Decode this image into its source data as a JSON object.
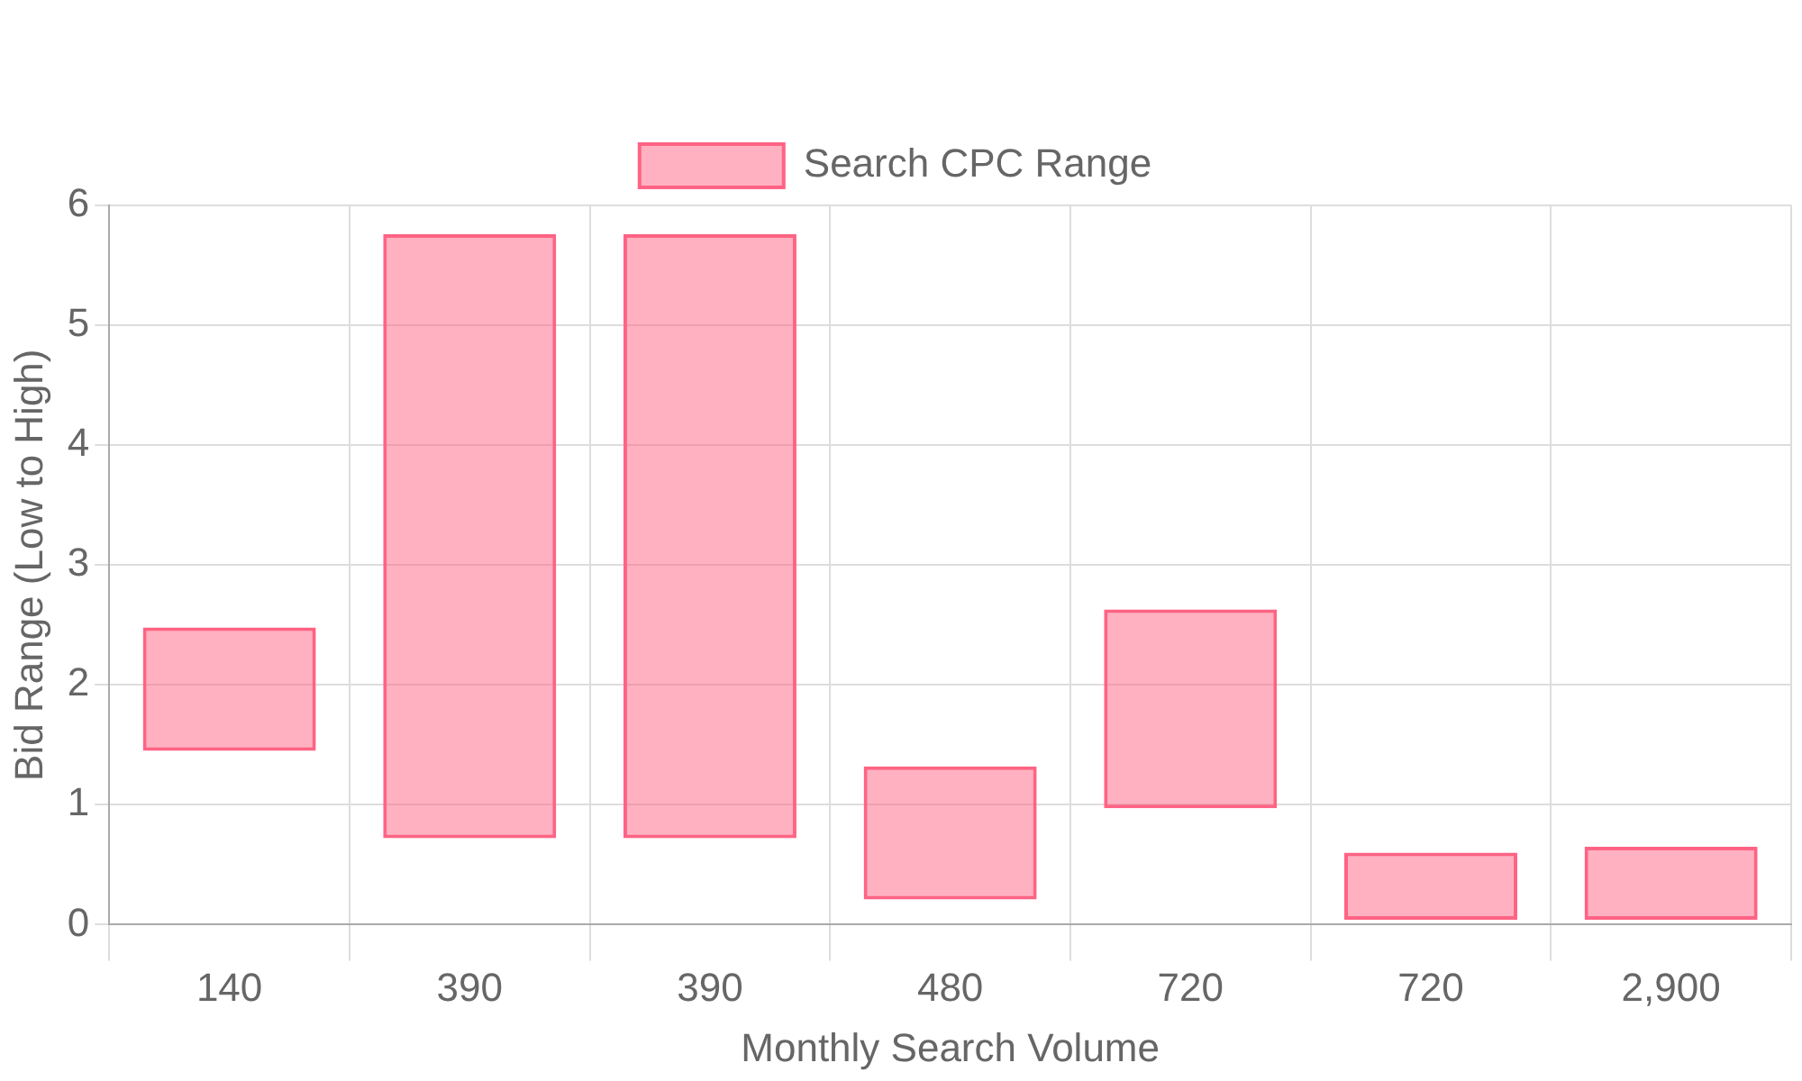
{
  "chart_data": {
    "type": "bar",
    "xlabel": "Monthly Search Volume",
    "ylabel": "Bid Range (Low to High)",
    "categories": [
      "140",
      "390",
      "390",
      "480",
      "720",
      "720",
      "2,900"
    ],
    "series": [
      {
        "name": "Search CPC Range",
        "color": "#ff6384",
        "values": [
          1.03,
          5.04,
          5.04,
          1.11,
          1.66,
          0.56,
          0.61
        ],
        "base": [
          1.45,
          0.72,
          0.72,
          0.21,
          0.97,
          0.04,
          0.04
        ]
      }
    ],
    "ylim": [
      0,
      6
    ],
    "yticks": [
      0,
      1,
      2,
      3,
      4,
      5,
      6
    ],
    "grid": true,
    "legend": "top"
  }
}
